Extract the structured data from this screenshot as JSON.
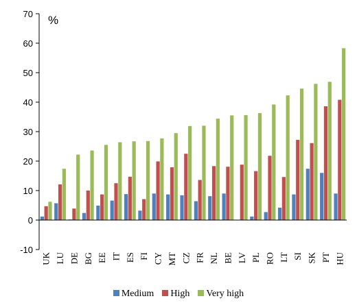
{
  "chart_data": {
    "type": "bar",
    "unit_label": "%",
    "categories": [
      "UK",
      "LU",
      "DE",
      "BG",
      "EE",
      "IT",
      "ES",
      "FI",
      "CY",
      "MT",
      "CZ",
      "FR",
      "NL",
      "BE",
      "LV",
      "PL",
      "RO",
      "LT",
      "SI",
      "SK",
      "PT",
      "HU"
    ],
    "series": [
      {
        "name": "Medium",
        "color": "#4f81bd",
        "values": [
          1.2,
          5.7,
          0.2,
          2.4,
          4.9,
          6.6,
          8.8,
          3.2,
          9.0,
          8.7,
          8.4,
          6.4,
          8.1,
          9.0,
          0.1,
          1.2,
          2.7,
          4.2,
          8.7,
          17.4,
          16.0,
          9.0
        ]
      },
      {
        "name": "High",
        "color": "#c0504d",
        "values": [
          4.7,
          12.1,
          3.9,
          10.0,
          8.7,
          12.5,
          14.7,
          7.1,
          19.9,
          17.9,
          22.5,
          13.6,
          18.3,
          18.1,
          18.8,
          16.6,
          21.8,
          14.6,
          27.2,
          26.1,
          38.6,
          40.8
        ]
      },
      {
        "name": "Very high",
        "color": "#9bbb59",
        "values": [
          6.2,
          17.4,
          22.2,
          23.6,
          25.5,
          26.4,
          26.7,
          26.8,
          27.7,
          29.5,
          31.9,
          32.0,
          34.4,
          35.5,
          35.6,
          36.3,
          39.2,
          42.3,
          44.6,
          46.2,
          46.9,
          58.3
        ]
      }
    ],
    "ylim": [
      -10,
      70
    ],
    "yticks": [
      -10,
      0,
      10,
      20,
      30,
      40,
      50,
      60,
      70
    ],
    "grid": false,
    "legend_position": "bottom"
  }
}
